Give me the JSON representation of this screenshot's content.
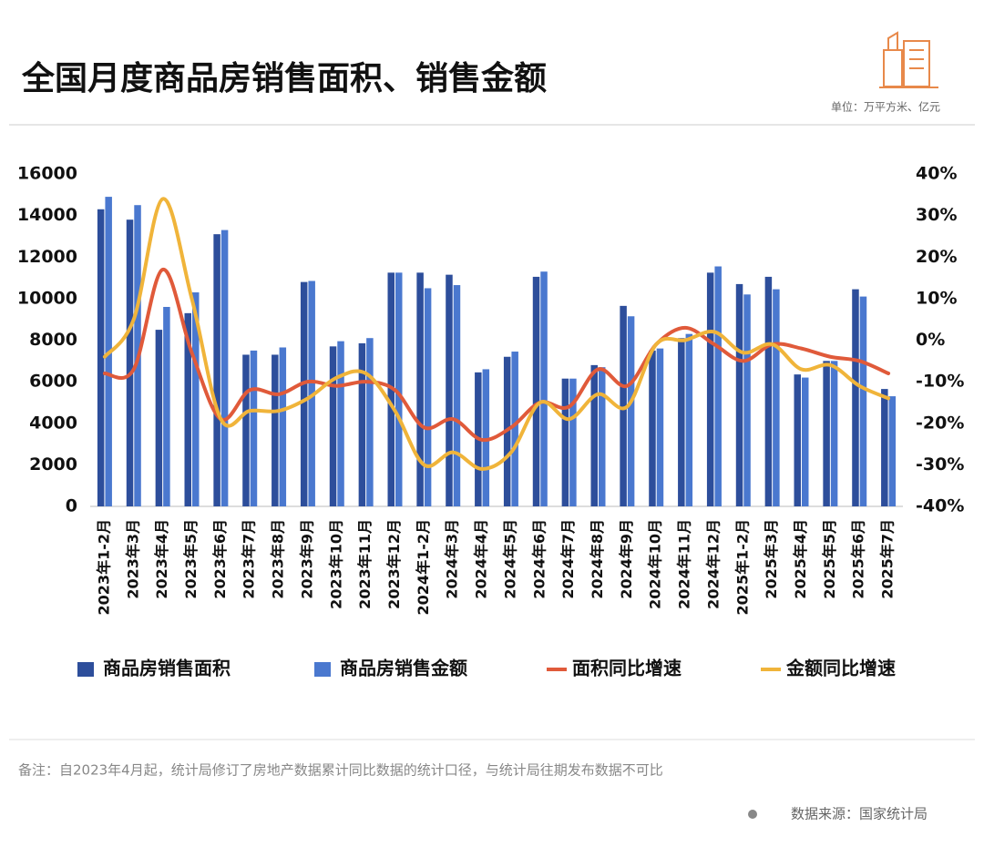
{
  "chart_data": {
    "type": "bar-line",
    "title": "全国月度商品房销售面积、销售金额",
    "subtitle": "单位：万平方米、亿元",
    "note": "备注：自2023年4月起，统计局修订了房地产数据累计同比数据的统计口径，与统计局往期发布数据不可比",
    "source": "数据来源：国家统计局",
    "categories": [
      "2023年1-2月",
      "2023年3月",
      "2023年4月",
      "2023年5月",
      "2023年6月",
      "2023年7月",
      "2023年8月",
      "2023年9月",
      "2023年10月",
      "2023年11月",
      "2023年12月",
      "2024年1-2月",
      "2024年3月",
      "2024年4月",
      "2024年5月",
      "2024年6月",
      "2024年7月",
      "2024年8月",
      "2024年9月",
      "2024年10月",
      "2024年11月",
      "2024年12月",
      "2025年1-2月",
      "2025年3月",
      "2025年4月",
      "2025年5月",
      "2025年6月",
      "2025年7月"
    ],
    "series": [
      {
        "name": "商品房销售面积",
        "kind": "bar",
        "color": "#2d4e9b",
        "values": [
          14300,
          13800,
          8500,
          9300,
          13100,
          7300,
          7300,
          10800,
          7700,
          7850,
          11250,
          11250,
          11150,
          6450,
          7200,
          11050,
          6150,
          6800,
          9650,
          7500,
          8100,
          11250,
          10700,
          11050,
          6350,
          7000,
          10450,
          5650
        ]
      },
      {
        "name": "商品房销售金额",
        "kind": "bar",
        "color": "#4a78cf",
        "values": [
          14900,
          14500,
          9600,
          10300,
          13300,
          7500,
          7650,
          10850,
          7950,
          8100,
          11250,
          10500,
          10650,
          6600,
          7450,
          11300,
          6150,
          6700,
          9150,
          7600,
          8300,
          11550,
          10200,
          10450,
          6200,
          7000,
          10100,
          5300
        ]
      },
      {
        "name": "面积同比增速",
        "kind": "line",
        "axis": "y2",
        "color": "#e05a3a",
        "values": [
          -8,
          -7,
          17,
          -3,
          -19,
          -12,
          -13,
          -10,
          -11,
          -10,
          -12,
          -21,
          -19,
          -24,
          -21,
          -15,
          -16,
          -7,
          -11,
          -1,
          3,
          -1,
          -5,
          -1,
          -2,
          -4,
          -5,
          -8
        ]
      },
      {
        "name": "金额同比增速",
        "kind": "line",
        "axis": "y2",
        "color": "#f0b43a",
        "values": [
          -4,
          5,
          34,
          10,
          -19,
          -17,
          -17,
          -14,
          -9,
          -8,
          -17,
          -30,
          -27,
          -31,
          -27,
          -15,
          -19,
          -13,
          -16,
          -1,
          0,
          2,
          -3,
          -1,
          -7,
          -6,
          -11,
          -14
        ]
      }
    ],
    "ylim": [
      0,
      16000
    ],
    "yticks": [
      0,
      2000,
      4000,
      6000,
      8000,
      10000,
      12000,
      14000,
      16000
    ],
    "y2lim": [
      -40,
      40
    ],
    "y2ticks": [
      {
        "value": -40,
        "label": "-40%"
      },
      {
        "value": -30,
        "label": "-30%"
      },
      {
        "value": -20,
        "label": "-20%"
      },
      {
        "value": -10,
        "label": "-10%"
      },
      {
        "value": 0,
        "label": "0%"
      },
      {
        "value": 10,
        "label": "10%"
      },
      {
        "value": 20,
        "label": "20%"
      },
      {
        "value": 30,
        "label": "30%"
      },
      {
        "value": 40,
        "label": "40%"
      }
    ]
  }
}
